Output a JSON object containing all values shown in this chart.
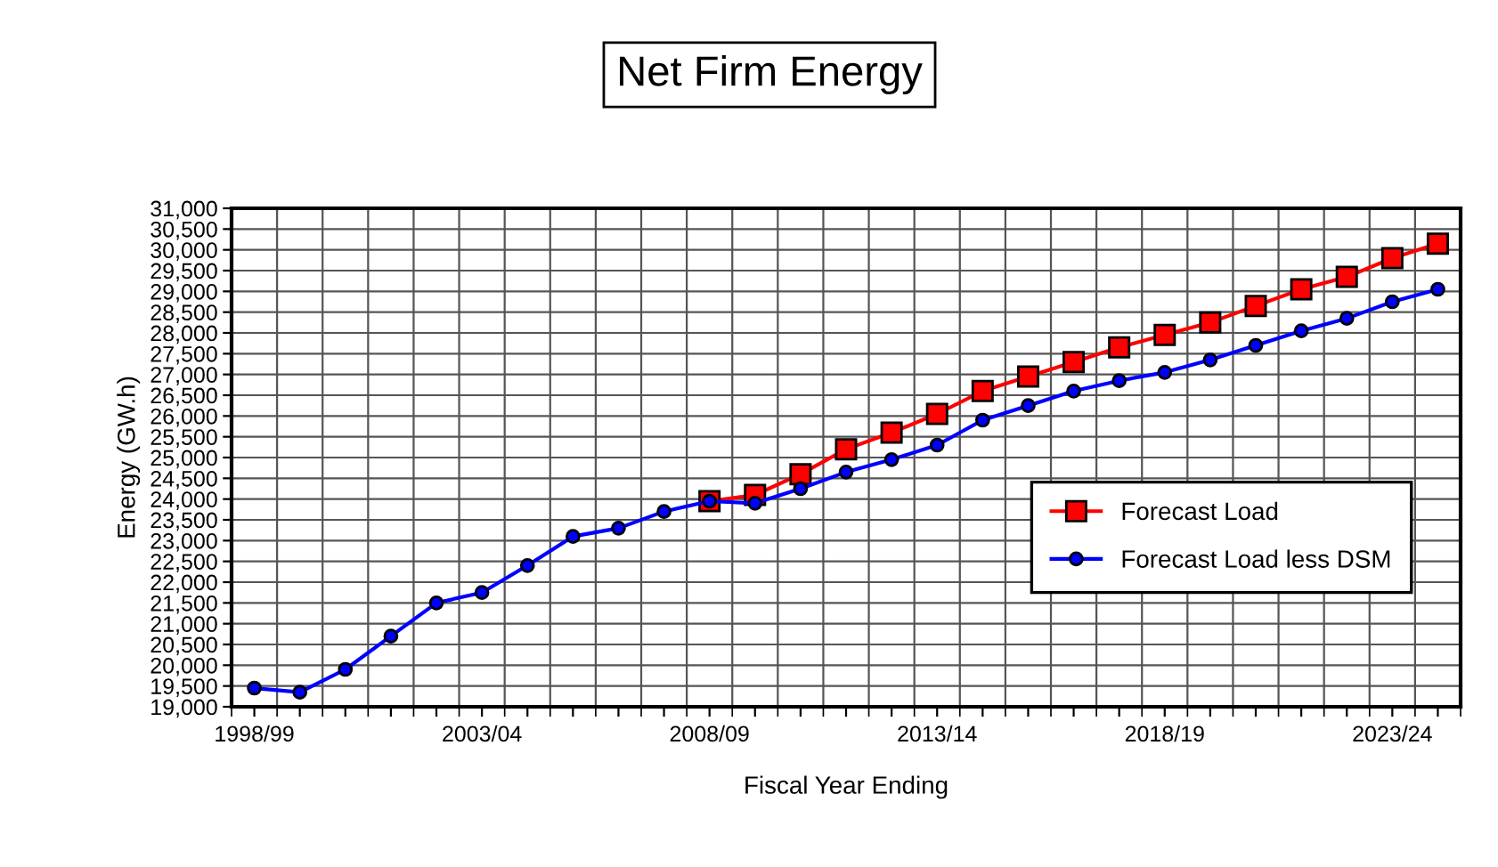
{
  "chart_data": {
    "type": "line",
    "title": "Net Firm Energy",
    "xlabel": "Fiscal Year Ending",
    "ylabel": "Energy (GW.h)",
    "categories": [
      "1998/99",
      null,
      null,
      null,
      null,
      "2003/04",
      null,
      null,
      null,
      null,
      "2008/09",
      null,
      null,
      null,
      null,
      "2013/14",
      null,
      null,
      null,
      null,
      "2018/19",
      null,
      null,
      null,
      null,
      "2023/24",
      null
    ],
    "series": [
      {
        "name": "Forecast Load",
        "color": "#ff0000",
        "marker": "square",
        "values": [
          null,
          null,
          null,
          null,
          null,
          null,
          null,
          null,
          null,
          null,
          23950,
          24100,
          24600,
          25200,
          25600,
          26050,
          26600,
          26950,
          27300,
          27650,
          27950,
          28250,
          28650,
          29050,
          29350,
          29800,
          30150
        ]
      },
      {
        "name": "Forecast Load less DSM",
        "color": "#0000ff",
        "marker": "circle",
        "values": [
          19450,
          19350,
          19900,
          20700,
          21500,
          21750,
          22400,
          23100,
          23300,
          23700,
          23950,
          23900,
          24250,
          24650,
          24950,
          25300,
          25900,
          26250,
          26600,
          26850,
          27050,
          27350,
          27700,
          28050,
          28350,
          28750,
          29050
        ]
      }
    ],
    "ylim": [
      19000,
      31000
    ],
    "yticks": [
      {
        "value": 19000,
        "label": "19,000"
      },
      {
        "value": 19500,
        "label": "19,500"
      },
      {
        "value": 20000,
        "label": "20,000"
      },
      {
        "value": 20500,
        "label": "20,500"
      },
      {
        "value": 21000,
        "label": "21,000"
      },
      {
        "value": 21500,
        "label": "21,500"
      },
      {
        "value": 22000,
        "label": "22,000"
      },
      {
        "value": 22500,
        "label": "22,500"
      },
      {
        "value": 23000,
        "label": "23,000"
      },
      {
        "value": 23500,
        "label": "23,500"
      },
      {
        "value": 24000,
        "label": "24,000"
      },
      {
        "value": 24500,
        "label": "24,500"
      },
      {
        "value": 25000,
        "label": "25,000"
      },
      {
        "value": 25500,
        "label": "25,500"
      },
      {
        "value": 26000,
        "label": "26,000"
      },
      {
        "value": 26500,
        "label": "26,500"
      },
      {
        "value": 27000,
        "label": "27,000"
      },
      {
        "value": 27500,
        "label": "27,500"
      },
      {
        "value": 28000,
        "label": "28,000"
      },
      {
        "value": 28500,
        "label": "28,500"
      },
      {
        "value": 29000,
        "label": "29,000"
      },
      {
        "value": 29500,
        "label": "29,500"
      },
      {
        "value": 30000,
        "label": "30,000"
      },
      {
        "value": 30500,
        "label": "30,500"
      },
      {
        "value": 31000,
        "label": "31,000"
      }
    ],
    "grid": true,
    "legend": "right",
    "line_style": "solid"
  }
}
